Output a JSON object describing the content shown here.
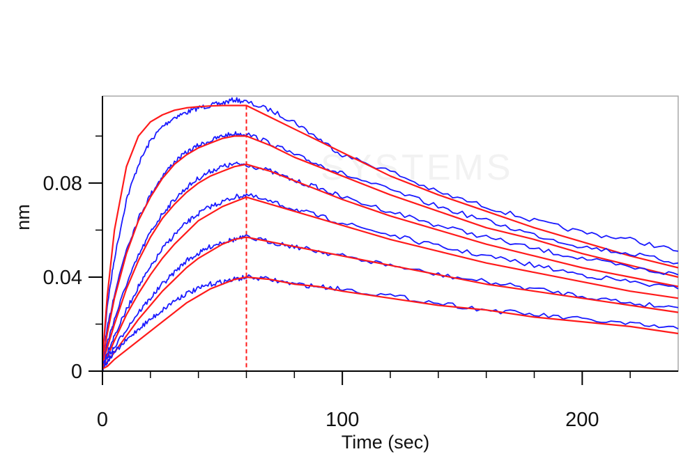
{
  "chart_data": {
    "type": "line",
    "title": "",
    "xlabel": "Time (sec)",
    "ylabel": "nm",
    "xlim": [
      0,
      240
    ],
    "ylim": [
      0,
      0.117
    ],
    "x_ticks": [
      0,
      100,
      200
    ],
    "x_tick_labels": [
      "0",
      "100",
      "200"
    ],
    "x_minor_step": 20,
    "y_ticks": [
      0,
      0.04,
      0.08
    ],
    "y_tick_labels": [
      "0",
      "0.04",
      "0.08"
    ],
    "y_minor_ticks": [
      0.02,
      0.06,
      0.1
    ],
    "grid": false,
    "legend": "none",
    "association_end_time": 60,
    "watermark_text": "SYSTEMS",
    "colors": {
      "measured": "#1a1aff",
      "fitted": "#ff1a1a",
      "marker_line": "#ff1a1a",
      "frame": "#a8a8a8",
      "axis": "#000000"
    },
    "series": [
      {
        "kind": "measured",
        "x": [
          0,
          2,
          5,
          10,
          15,
          20,
          25,
          30,
          35,
          40,
          45,
          50,
          55,
          60,
          70,
          80,
          90,
          100,
          120,
          140,
          160,
          180,
          200,
          220,
          240
        ],
        "y": [
          0.005,
          0.028,
          0.048,
          0.073,
          0.088,
          0.098,
          0.104,
          0.108,
          0.11,
          0.112,
          0.113,
          0.114,
          0.1155,
          0.1145,
          0.111,
          0.106,
          0.099,
          0.092,
          0.085,
          0.076,
          0.07,
          0.064,
          0.059,
          0.056,
          0.051
        ]
      },
      {
        "kind": "fitted",
        "x": [
          0,
          2,
          5,
          10,
          15,
          20,
          25,
          30,
          35,
          40,
          45,
          50,
          55,
          60,
          70,
          80,
          90,
          100,
          120,
          140,
          160,
          180,
          200,
          220,
          240
        ],
        "y": [
          0.005,
          0.032,
          0.06,
          0.087,
          0.1,
          0.106,
          0.109,
          0.111,
          0.112,
          0.1125,
          0.1128,
          0.113,
          0.113,
          0.113,
          0.108,
          0.103,
          0.098,
          0.093,
          0.083,
          0.075,
          0.068,
          0.061,
          0.055,
          0.049,
          0.044
        ]
      },
      {
        "kind": "measured",
        "x": [
          0,
          2,
          5,
          10,
          15,
          20,
          25,
          30,
          35,
          40,
          45,
          50,
          55,
          60,
          70,
          80,
          90,
          100,
          120,
          140,
          160,
          180,
          200,
          220,
          240
        ],
        "y": [
          0.004,
          0.018,
          0.033,
          0.052,
          0.065,
          0.075,
          0.083,
          0.089,
          0.093,
          0.096,
          0.098,
          0.1,
          0.101,
          0.101,
          0.097,
          0.092,
          0.088,
          0.084,
          0.077,
          0.07,
          0.064,
          0.058,
          0.053,
          0.05,
          0.046
        ]
      },
      {
        "kind": "fitted",
        "x": [
          0,
          2,
          5,
          10,
          15,
          20,
          25,
          30,
          35,
          40,
          45,
          50,
          55,
          60,
          70,
          80,
          90,
          100,
          120,
          140,
          160,
          180,
          200,
          220,
          240
        ],
        "y": [
          0.004,
          0.016,
          0.031,
          0.05,
          0.064,
          0.074,
          0.082,
          0.088,
          0.092,
          0.095,
          0.097,
          0.099,
          0.1,
          0.1,
          0.096,
          0.091,
          0.087,
          0.083,
          0.075,
          0.068,
          0.061,
          0.056,
          0.05,
          0.045,
          0.04
        ]
      },
      {
        "kind": "measured",
        "x": [
          0,
          2,
          5,
          10,
          15,
          20,
          25,
          30,
          35,
          40,
          45,
          50,
          55,
          60,
          70,
          80,
          90,
          100,
          120,
          140,
          160,
          180,
          200,
          220,
          240
        ],
        "y": [
          0.003,
          0.012,
          0.022,
          0.037,
          0.049,
          0.059,
          0.067,
          0.073,
          0.078,
          0.082,
          0.085,
          0.087,
          0.088,
          0.088,
          0.085,
          0.081,
          0.078,
          0.074,
          0.068,
          0.062,
          0.057,
          0.052,
          0.048,
          0.044,
          0.041
        ]
      },
      {
        "kind": "fitted",
        "x": [
          0,
          2,
          5,
          10,
          15,
          20,
          25,
          30,
          35,
          40,
          45,
          50,
          55,
          60,
          70,
          80,
          90,
          100,
          120,
          140,
          160,
          180,
          200,
          220,
          240
        ],
        "y": [
          0.003,
          0.01,
          0.02,
          0.035,
          0.047,
          0.057,
          0.065,
          0.071,
          0.076,
          0.08,
          0.083,
          0.085,
          0.087,
          0.088,
          0.085,
          0.081,
          0.077,
          0.073,
          0.066,
          0.06,
          0.054,
          0.049,
          0.044,
          0.04,
          0.036
        ]
      },
      {
        "kind": "measured",
        "x": [
          0,
          2,
          5,
          10,
          15,
          20,
          25,
          30,
          35,
          40,
          45,
          50,
          55,
          60,
          70,
          80,
          90,
          100,
          120,
          140,
          160,
          180,
          200,
          220,
          240
        ],
        "y": [
          0.002,
          0.008,
          0.015,
          0.026,
          0.036,
          0.044,
          0.052,
          0.058,
          0.063,
          0.067,
          0.07,
          0.072,
          0.074,
          0.075,
          0.072,
          0.069,
          0.066,
          0.063,
          0.058,
          0.053,
          0.049,
          0.045,
          0.041,
          0.038,
          0.035
        ]
      },
      {
        "kind": "fitted",
        "x": [
          0,
          2,
          5,
          10,
          15,
          20,
          25,
          30,
          35,
          40,
          45,
          50,
          55,
          60,
          70,
          80,
          90,
          100,
          120,
          140,
          160,
          180,
          200,
          220,
          240
        ],
        "y": [
          0.002,
          0.006,
          0.013,
          0.024,
          0.033,
          0.041,
          0.048,
          0.054,
          0.059,
          0.064,
          0.067,
          0.07,
          0.072,
          0.074,
          0.071,
          0.068,
          0.065,
          0.062,
          0.056,
          0.051,
          0.046,
          0.042,
          0.038,
          0.034,
          0.031
        ]
      },
      {
        "kind": "measured",
        "x": [
          0,
          2,
          5,
          10,
          15,
          20,
          25,
          30,
          35,
          40,
          45,
          50,
          55,
          60,
          70,
          80,
          90,
          100,
          120,
          140,
          160,
          180,
          200,
          220,
          240
        ],
        "y": [
          0.002,
          0.006,
          0.01,
          0.018,
          0.025,
          0.031,
          0.037,
          0.042,
          0.047,
          0.05,
          0.053,
          0.055,
          0.056,
          0.057,
          0.055,
          0.053,
          0.051,
          0.049,
          0.045,
          0.041,
          0.038,
          0.035,
          0.032,
          0.029,
          0.027
        ]
      },
      {
        "kind": "fitted",
        "x": [
          0,
          2,
          5,
          10,
          15,
          20,
          25,
          30,
          35,
          40,
          45,
          50,
          55,
          60,
          70,
          80,
          90,
          100,
          120,
          140,
          160,
          180,
          200,
          220,
          240
        ],
        "y": [
          0.002,
          0.004,
          0.008,
          0.015,
          0.022,
          0.028,
          0.034,
          0.039,
          0.044,
          0.048,
          0.051,
          0.054,
          0.056,
          0.057,
          0.055,
          0.053,
          0.051,
          0.049,
          0.045,
          0.041,
          0.037,
          0.034,
          0.031,
          0.028,
          0.025
        ]
      },
      {
        "kind": "measured",
        "x": [
          0,
          2,
          5,
          10,
          15,
          20,
          25,
          30,
          35,
          40,
          45,
          50,
          55,
          60,
          70,
          80,
          90,
          100,
          120,
          140,
          160,
          180,
          200,
          220,
          240
        ],
        "y": [
          0.001,
          0.004,
          0.008,
          0.013,
          0.018,
          0.022,
          0.026,
          0.03,
          0.033,
          0.035,
          0.037,
          0.038,
          0.039,
          0.04,
          0.039,
          0.037,
          0.036,
          0.035,
          0.032,
          0.029,
          0.026,
          0.024,
          0.022,
          0.02,
          0.018
        ]
      },
      {
        "kind": "fitted",
        "x": [
          0,
          2,
          5,
          10,
          15,
          20,
          25,
          30,
          35,
          40,
          45,
          50,
          55,
          60,
          70,
          80,
          90,
          100,
          120,
          140,
          160,
          180,
          200,
          220,
          240
        ],
        "y": [
          0.001,
          0.002,
          0.005,
          0.009,
          0.013,
          0.017,
          0.021,
          0.025,
          0.029,
          0.032,
          0.035,
          0.037,
          0.039,
          0.04,
          0.039,
          0.037,
          0.036,
          0.034,
          0.031,
          0.028,
          0.026,
          0.023,
          0.021,
          0.019,
          0.016
        ]
      }
    ]
  }
}
